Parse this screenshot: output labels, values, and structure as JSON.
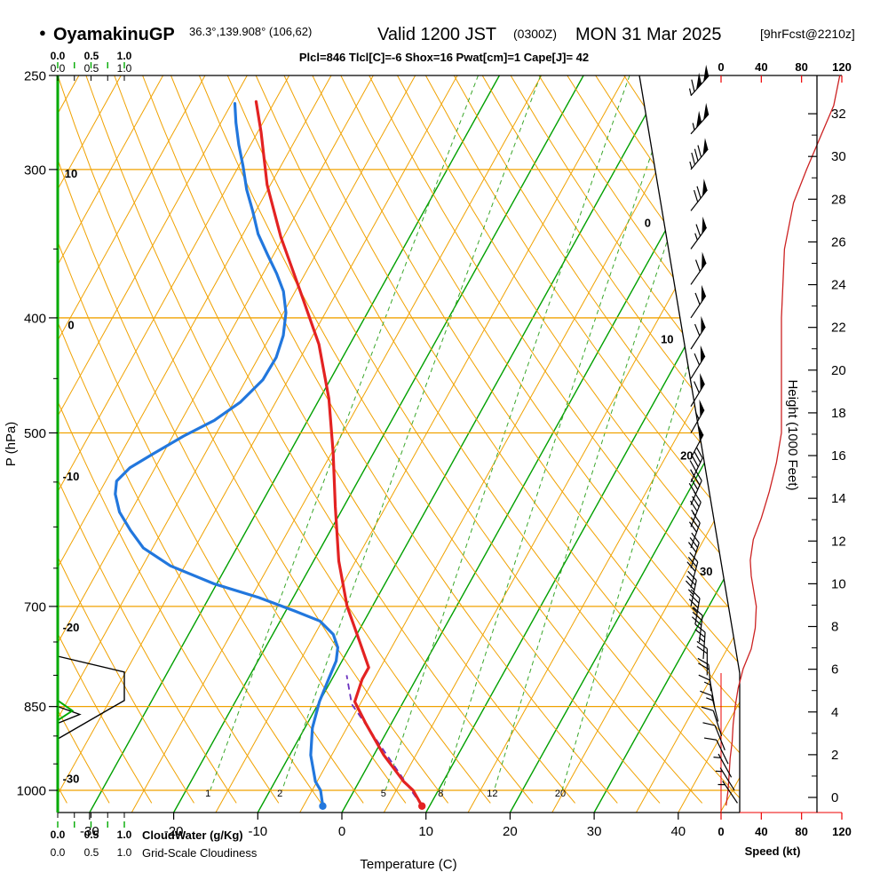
{
  "header": {
    "station_dot": "●",
    "station": "OyamakinuGP",
    "coords": "36.3°,139.908° (106,62)",
    "valid": "Valid 1200 JST",
    "valid_z": "(0300Z)",
    "valid_date": "MON 31 Mar 2025",
    "fcst": "[9hrFcst@2210z]",
    "params": "Plcl=846 Tlcl[C]=-6 Shox=16 Pwat[cm]=1 Cape[J]= 42"
  },
  "axes": {
    "pressure_label": "P (hPa)",
    "pressure_ticks": [
      250,
      300,
      400,
      500,
      700,
      850,
      1000
    ],
    "pressure_minor_ticks": [
      350,
      450,
      550,
      600,
      650,
      750,
      800,
      900,
      950
    ],
    "temp_label": "Temperature (C)",
    "temp_ticks": [
      -30,
      -20,
      -10,
      0,
      10,
      20,
      30,
      40
    ],
    "height_label": "Height (1000 Feet)",
    "height_ticks": [
      0,
      2,
      4,
      6,
      8,
      10,
      12,
      14,
      16,
      18,
      20,
      22,
      24,
      26,
      28,
      30,
      32
    ],
    "speed_label": "Speed (kt)",
    "speed_ticks": [
      0,
      40,
      80,
      120
    ],
    "cloudwater_label": "CloudWater (g/Kg)",
    "cloudiness_label": "Grid-Scale Cloudiness",
    "cloud_scale": [
      "0.0",
      "0.5",
      "1.0"
    ]
  },
  "grid": {
    "isotherm_left_labels": [
      10,
      0,
      -10,
      -20,
      -30
    ],
    "isotherm_right_labels": [
      0,
      10,
      20,
      30
    ],
    "mixing_ratio_labels": [
      1,
      2,
      5,
      8,
      12,
      20
    ]
  },
  "colors": {
    "orange_grid": "#f0a202",
    "green_grid": "#00a000",
    "green": "#00aa00",
    "green_mix": "#3aa62a",
    "temp_red": "#e32222",
    "dewpoint_blue": "#2277dd",
    "speed_line": "#cc2222",
    "red_axis": "#ee0000",
    "magenta": "#b800b8",
    "parcel_purple": "#6a2fbf",
    "black": "#000000"
  },
  "chart_data": {
    "type": "line",
    "subtype": "skewt-log-p-sounding",
    "title": "OyamakinuGP Valid 1200 JST (0300Z) MON 31 Mar 2025",
    "xlabel": "Temperature (C)",
    "ylabel": "P (hPa)",
    "x_range_c": [
      -30,
      40
    ],
    "p_range_hpa": [
      250,
      1045
    ],
    "stability": {
      "Plcl": 846,
      "Tlcl_C": -6,
      "Shox": 16,
      "Pwat_cm": 1,
      "Cape_J": 42
    },
    "temperature_profile": [
      [
        1031,
        9.1
      ],
      [
        1000,
        7.0
      ],
      [
        983,
        5.3
      ],
      [
        934,
        1.2
      ],
      [
        879,
        -3.0
      ],
      [
        842,
        -5.8
      ],
      [
        806,
        -6.4
      ],
      [
        788,
        -6.4
      ],
      [
        752,
        -9.0
      ],
      [
        700,
        -13.0
      ],
      [
        641,
        -17.0
      ],
      [
        577,
        -21.0
      ],
      [
        520,
        -24.8
      ],
      [
        468,
        -28.9
      ],
      [
        421,
        -33.7
      ],
      [
        380,
        -39.4
      ],
      [
        342,
        -45.3
      ],
      [
        309,
        -50.4
      ],
      [
        279,
        -54.6
      ],
      [
        263,
        -57.2
      ]
    ],
    "dewpoint_profile": [
      [
        1031,
        -2.7
      ],
      [
        1000,
        -4.0
      ],
      [
        983,
        -5.2
      ],
      [
        934,
        -7.5
      ],
      [
        886,
        -9.1
      ],
      [
        842,
        -10.0
      ],
      [
        806,
        -10.4
      ],
      [
        778,
        -10.7
      ],
      [
        758,
        -11.4
      ],
      [
        739,
        -12.8
      ],
      [
        720,
        -15.3
      ],
      [
        706,
        -19.0
      ],
      [
        688,
        -24.1
      ],
      [
        670,
        -30.3
      ],
      [
        647,
        -36.7
      ],
      [
        625,
        -41.1
      ],
      [
        604,
        -43.8
      ],
      [
        583,
        -46.3
      ],
      [
        563,
        -48.0
      ],
      [
        549,
        -48.7
      ],
      [
        535,
        -48.0
      ],
      [
        521,
        -46.2
      ],
      [
        503,
        -43.7
      ],
      [
        488,
        -41.1
      ],
      [
        471,
        -39.2
      ],
      [
        451,
        -38.0
      ],
      [
        432,
        -37.9
      ],
      [
        414,
        -38.5
      ],
      [
        396,
        -39.7
      ],
      [
        380,
        -41.4
      ],
      [
        367,
        -43.4
      ],
      [
        354,
        -45.7
      ],
      [
        340,
        -48.2
      ],
      [
        325,
        -50.4
      ],
      [
        312,
        -52.5
      ],
      [
        298,
        -54.5
      ],
      [
        286,
        -56.4
      ],
      [
        274,
        -58.2
      ],
      [
        264,
        -59.6
      ]
    ],
    "parcel_path": [
      [
        1031,
        9.1
      ],
      [
        846,
        -6.0
      ],
      [
        800,
        -8.5
      ]
    ],
    "surface_temp_point": [
      1031,
      9.1
    ],
    "surface_dewpoint_point": [
      1031,
      -2.7
    ],
    "wind_speed_profile_kt": [
      [
        250,
        118
      ],
      [
        265,
        112
      ],
      [
        280,
        100
      ],
      [
        300,
        85
      ],
      [
        320,
        72
      ],
      [
        350,
        63
      ],
      [
        400,
        60
      ],
      [
        450,
        60
      ],
      [
        500,
        60
      ],
      [
        530,
        55
      ],
      [
        560,
        48
      ],
      [
        590,
        40
      ],
      [
        615,
        32
      ],
      [
        640,
        29
      ],
      [
        660,
        30
      ],
      [
        700,
        35
      ],
      [
        730,
        34
      ],
      [
        760,
        30
      ],
      [
        790,
        22
      ],
      [
        820,
        17
      ],
      [
        850,
        14
      ],
      [
        880,
        12
      ],
      [
        910,
        11
      ],
      [
        940,
        9
      ],
      [
        970,
        8
      ],
      [
        1000,
        7
      ],
      [
        1030,
        5
      ]
    ],
    "wind_barbs": [
      [
        260,
        42,
        115
      ],
      [
        280,
        42,
        103
      ],
      [
        300,
        40,
        85
      ],
      [
        325,
        38,
        70
      ],
      [
        350,
        36,
        65
      ],
      [
        375,
        35,
        60
      ],
      [
        400,
        34,
        60
      ],
      [
        425,
        33,
        60
      ],
      [
        450,
        32,
        60
      ],
      [
        475,
        31,
        58
      ],
      [
        500,
        30,
        55
      ],
      [
        525,
        28,
        50
      ],
      [
        550,
        26,
        46
      ],
      [
        575,
        24,
        42
      ],
      [
        600,
        22,
        35
      ],
      [
        625,
        20,
        32
      ],
      [
        650,
        18,
        30
      ],
      [
        675,
        15,
        32
      ],
      [
        700,
        12,
        35
      ],
      [
        725,
        10,
        33
      ],
      [
        750,
        7,
        30
      ],
      [
        775,
        4,
        25
      ],
      [
        800,
        0,
        20
      ],
      [
        825,
        -5,
        18
      ],
      [
        850,
        -10,
        15
      ],
      [
        875,
        -14,
        13
      ],
      [
        900,
        -18,
        12
      ],
      [
        925,
        -22,
        10
      ],
      [
        950,
        -26,
        8
      ],
      [
        975,
        -29,
        7
      ],
      [
        1000,
        -32,
        6
      ],
      [
        1025,
        -34,
        5
      ]
    ],
    "cloudiness_profile": [
      [
        771,
        0
      ],
      [
        795,
        1
      ],
      [
        840,
        1
      ],
      [
        905,
        0
      ]
    ],
    "cloudiness_wedge": [
      [
        850,
        0
      ],
      [
        863,
        0.33
      ],
      [
        878,
        0
      ]
    ],
    "cloudwater_wedge": [
      [
        840,
        0
      ],
      [
        857,
        0.22
      ],
      [
        873,
        0
      ]
    ]
  }
}
